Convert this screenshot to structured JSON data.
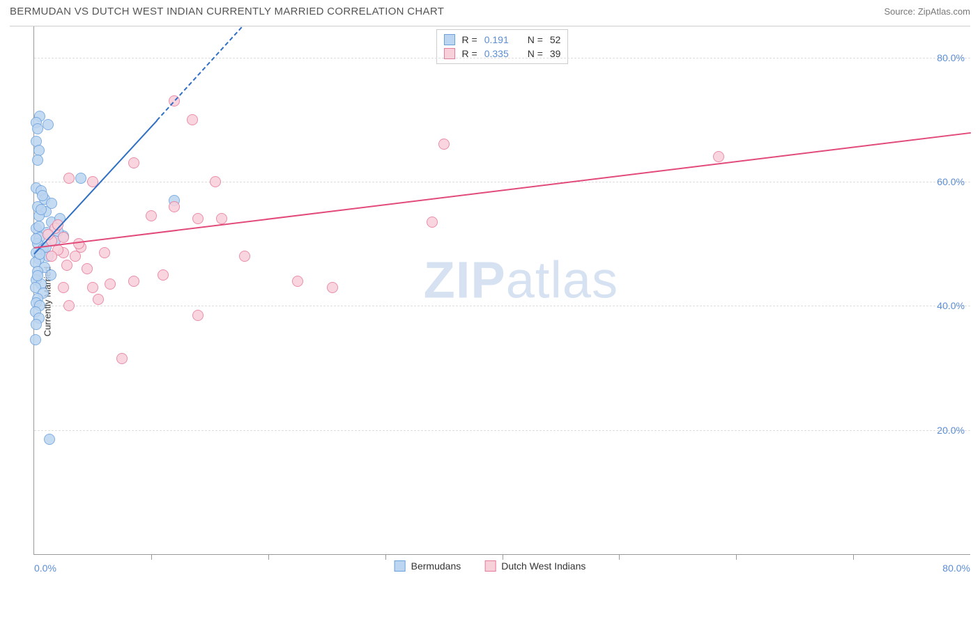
{
  "header": {
    "title": "BERMUDAN VS DUTCH WEST INDIAN CURRENTLY MARRIED CORRELATION CHART",
    "source_label": "Source: ZipAtlas.com"
  },
  "chart": {
    "type": "scatter",
    "y_axis_label": "Currently Married",
    "xlim": [
      0,
      80
    ],
    "ylim": [
      0,
      85
    ],
    "y_ticks": [
      20,
      40,
      60,
      80
    ],
    "y_tick_labels": [
      "20.0%",
      "40.0%",
      "60.0%",
      "80.0%"
    ],
    "x_ticks": [
      0,
      10,
      20,
      30,
      40,
      50,
      60,
      70,
      80
    ],
    "x_min_label": "0.0%",
    "x_max_label": "80.0%",
    "grid_color": "#dddddd",
    "axis_color": "#999999",
    "tick_label_color": "#5b8dd6",
    "background_color": "#ffffff",
    "marker_radius": 8,
    "marker_stroke_width": 1,
    "series": [
      {
        "name": "Bermudans",
        "fill_color": "#bcd5f0",
        "stroke_color": "#6aa1dd",
        "line_color": "#2f6fc4",
        "r_value": "0.191",
        "n_value": "52",
        "regression": {
          "x1": 0,
          "y1": 48.5,
          "x2": 10.5,
          "y2": 70,
          "dashed_to_x": 25,
          "dashed_to_y": 100
        },
        "points": [
          [
            0.5,
            70.5
          ],
          [
            0.2,
            69.5
          ],
          [
            1.2,
            69.2
          ],
          [
            0.3,
            68.5
          ],
          [
            0.2,
            66.5
          ],
          [
            0.4,
            65.0
          ],
          [
            0.3,
            63.5
          ],
          [
            4.0,
            60.5
          ],
          [
            0.2,
            59.0
          ],
          [
            0.6,
            58.5
          ],
          [
            0.9,
            57.2
          ],
          [
            0.3,
            56.0
          ],
          [
            1.0,
            55.2
          ],
          [
            0.4,
            54.5
          ],
          [
            1.5,
            53.5
          ],
          [
            0.2,
            52.5
          ],
          [
            1.1,
            51.8
          ],
          [
            0.5,
            51.0
          ],
          [
            1.8,
            50.5
          ],
          [
            0.3,
            50.0
          ],
          [
            0.8,
            49.2
          ],
          [
            0.2,
            48.5
          ],
          [
            1.2,
            48.0
          ],
          [
            0.4,
            47.5
          ],
          [
            0.1,
            47.0
          ],
          [
            0.9,
            46.2
          ],
          [
            0.3,
            45.5
          ],
          [
            1.4,
            45.0
          ],
          [
            0.2,
            44.2
          ],
          [
            0.6,
            43.5
          ],
          [
            0.1,
            43.0
          ],
          [
            0.8,
            42.0
          ],
          [
            0.3,
            41.2
          ],
          [
            0.2,
            40.5
          ],
          [
            0.5,
            40.0
          ],
          [
            0.1,
            39.0
          ],
          [
            0.4,
            38.0
          ],
          [
            0.2,
            37.0
          ],
          [
            0.1,
            34.5
          ],
          [
            1.3,
            18.5
          ],
          [
            12.0,
            57.0
          ],
          [
            2.5,
            51.2
          ],
          [
            2.0,
            52.0
          ],
          [
            0.6,
            55.5
          ],
          [
            1.5,
            56.5
          ],
          [
            0.7,
            57.8
          ],
          [
            2.2,
            54.0
          ],
          [
            0.4,
            52.8
          ],
          [
            0.2,
            50.8
          ],
          [
            1.0,
            49.5
          ],
          [
            0.5,
            48.3
          ],
          [
            0.3,
            44.8
          ]
        ]
      },
      {
        "name": "Dutch West Indians",
        "fill_color": "#f8d0da",
        "stroke_color": "#e77a9b",
        "line_color": "#e24a7a",
        "r_value": "0.335",
        "n_value": "39",
        "regression": {
          "x1": 0,
          "y1": 49.5,
          "x2": 80,
          "y2": 68
        },
        "points": [
          [
            12.0,
            73.0
          ],
          [
            13.5,
            70.0
          ],
          [
            35.0,
            66.0
          ],
          [
            58.5,
            64.0
          ],
          [
            8.5,
            63.0
          ],
          [
            3.0,
            60.5
          ],
          [
            5.0,
            60.0
          ],
          [
            15.5,
            60.0
          ],
          [
            10.0,
            54.5
          ],
          [
            14.0,
            54.0
          ],
          [
            16.0,
            54.0
          ],
          [
            12.0,
            56.0
          ],
          [
            4.0,
            49.5
          ],
          [
            6.0,
            48.5
          ],
          [
            3.5,
            48.0
          ],
          [
            2.5,
            48.5
          ],
          [
            18.0,
            48.0
          ],
          [
            34.0,
            53.5
          ],
          [
            4.5,
            46.0
          ],
          [
            11.0,
            45.0
          ],
          [
            8.5,
            44.0
          ],
          [
            5.0,
            43.0
          ],
          [
            6.5,
            43.5
          ],
          [
            2.5,
            43.0
          ],
          [
            22.5,
            44.0
          ],
          [
            25.5,
            43.0
          ],
          [
            14.0,
            38.5
          ],
          [
            5.5,
            41.0
          ],
          [
            3.0,
            40.0
          ],
          [
            2.0,
            49.0
          ],
          [
            1.5,
            50.5
          ],
          [
            2.5,
            51.0
          ],
          [
            1.8,
            52.5
          ],
          [
            3.8,
            50.0
          ],
          [
            1.2,
            51.5
          ],
          [
            2.0,
            53.0
          ],
          [
            1.5,
            48.0
          ],
          [
            2.8,
            46.5
          ],
          [
            7.5,
            31.5
          ]
        ]
      }
    ],
    "stats_box": {
      "r_label": "R  =",
      "n_label": "N  ="
    },
    "watermark": {
      "bold": "ZIP",
      "rest": "atlas"
    },
    "bottom_legend_labels": [
      "Bermudans",
      "Dutch West Indians"
    ]
  }
}
